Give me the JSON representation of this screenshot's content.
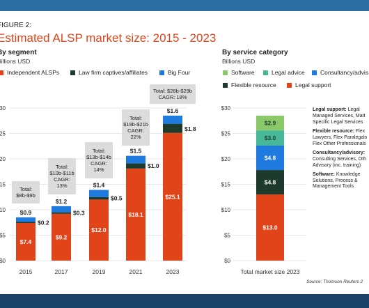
{
  "figure_label": "FIGURE 2:",
  "title": "Estimated ALSP market size: 2015 - 2023",
  "source": "Source: Thomson Reuters 2",
  "colors": {
    "independent": "#e2441a",
    "captives": "#1d3a2c",
    "bigfour": "#1f7ae0",
    "software": "#8bc96a",
    "legal_advice": "#46b898",
    "consultancy": "#1f7ae0",
    "flexible": "#1d3a2c",
    "legal_support": "#e2441a"
  },
  "chart_data": [
    {
      "type": "bar",
      "stacked": true,
      "title": "By segment",
      "subtitle": "Billions USD",
      "categories": [
        "2015",
        "2017",
        "2019",
        "2021",
        "2023"
      ],
      "series": [
        {
          "name": "Independent ALSPs",
          "values": [
            7.4,
            9.2,
            12.0,
            18.1,
            25.1
          ]
        },
        {
          "name": "Law firm captives/affiliates",
          "values": [
            0.2,
            0.3,
            0.5,
            1.0,
            1.8
          ]
        },
        {
          "name": "Big Four",
          "values": [
            0.9,
            1.2,
            1.4,
            1.5,
            1.6
          ]
        }
      ],
      "value_labels": {
        "independent": [
          "$7.4",
          "$9.2",
          "$12.0",
          "$18.1",
          "$25.1"
        ],
        "captives": [
          "$0.2",
          "$0.3",
          "$0.5",
          "$1.0",
          "$1.8"
        ],
        "bigfour": [
          "$0.9",
          "$1.2",
          "$1.4",
          "$1.5",
          "$1.6"
        ]
      },
      "ylim": [
        0,
        30
      ],
      "y_ticks": [
        0,
        5,
        10,
        15,
        20,
        25,
        30
      ],
      "y_tick_labels": [
        "$0",
        "$5",
        "$10",
        "$15",
        "$20",
        "$25",
        "$30"
      ],
      "totals": [
        {
          "lines": [
            "Total:",
            "$8b-$9b"
          ]
        },
        {
          "lines": [
            "Total:",
            "$10b-$11b",
            "CAGR:",
            "13%"
          ]
        },
        {
          "lines": [
            "Total:",
            "$13b-$14b",
            "CAGR:",
            "14%"
          ]
        },
        {
          "lines": [
            "Total:",
            "$19b-$21b",
            "CAGR:",
            "22%"
          ]
        },
        {
          "lines": [
            "Total: $28b-$29b",
            "CAGR: 18%"
          ]
        }
      ],
      "grid": true
    },
    {
      "type": "bar",
      "stacked": true,
      "title": "By service category",
      "subtitle": "Billions USD",
      "categories": [
        "Total market size 2023"
      ],
      "series": [
        {
          "name": "Legal support",
          "values": [
            13.0
          ],
          "label": "$13.0"
        },
        {
          "name": "Flexible resource",
          "values": [
            4.8
          ],
          "label": "$4.8"
        },
        {
          "name": "Consultancy/advisory",
          "values": [
            4.8
          ],
          "label": "$4.8"
        },
        {
          "name": "Legal advice",
          "values": [
            3.0
          ],
          "label": "$3.0"
        },
        {
          "name": "Software",
          "values": [
            2.9
          ],
          "label": "$2.9"
        }
      ],
      "legend_labels": [
        "Software",
        "Legal advice",
        "Consultancy/advis",
        "Flexible resource",
        "Legal support"
      ],
      "ylim": [
        0,
        30
      ],
      "y_ticks": [
        0,
        5,
        10,
        15,
        20,
        25,
        30
      ],
      "y_tick_labels": [
        "$0",
        "$5",
        "$10",
        "$15",
        "$20",
        "$25",
        "$30"
      ],
      "grid": true
    }
  ],
  "notes": [
    {
      "heading": "Legal support:",
      "lines": [
        " Legal",
        "Managed Services, Matt",
        "Specific Legal Services"
      ]
    },
    {
      "heading": "Flexible resource:",
      "lines": [
        " Flex",
        "Lawyers, Flex Paralegals",
        "Flex Other Professionals"
      ]
    },
    {
      "heading": "Consultancy/advisory:",
      "lines": [
        " ",
        "Consulting Services, Oth",
        "Advisory (inc. training)"
      ]
    },
    {
      "heading": "Software:",
      "lines": [
        " Knowledge",
        "Solutions, Process &",
        "Management Tools"
      ]
    }
  ]
}
